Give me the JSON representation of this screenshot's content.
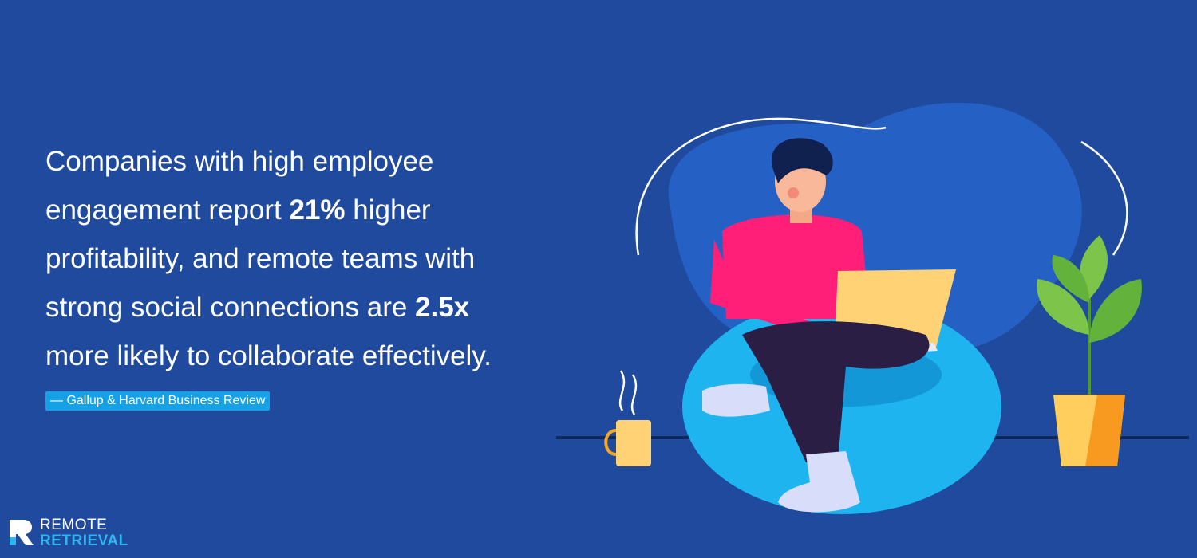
{
  "quote": {
    "lines": [
      [
        {
          "text": "Companies with high employee",
          "bold": false
        }
      ],
      [
        {
          "text": "engagement report ",
          "bold": false
        },
        {
          "text": "21%",
          "bold": true
        },
        {
          "text": " higher",
          "bold": false
        }
      ],
      [
        {
          "text": "profitability, and remote teams with",
          "bold": false
        }
      ],
      [
        {
          "text": "strong social connections are ",
          "bold": false
        },
        {
          "text": "2.5x",
          "bold": true
        }
      ],
      [
        {
          "text": "more likely to collaborate effectively.",
          "bold": false
        }
      ]
    ]
  },
  "source": "— Gallup & Harvard Business Review",
  "logo": {
    "top": "REMOTE",
    "bottom": "RETRIEVAL"
  }
}
